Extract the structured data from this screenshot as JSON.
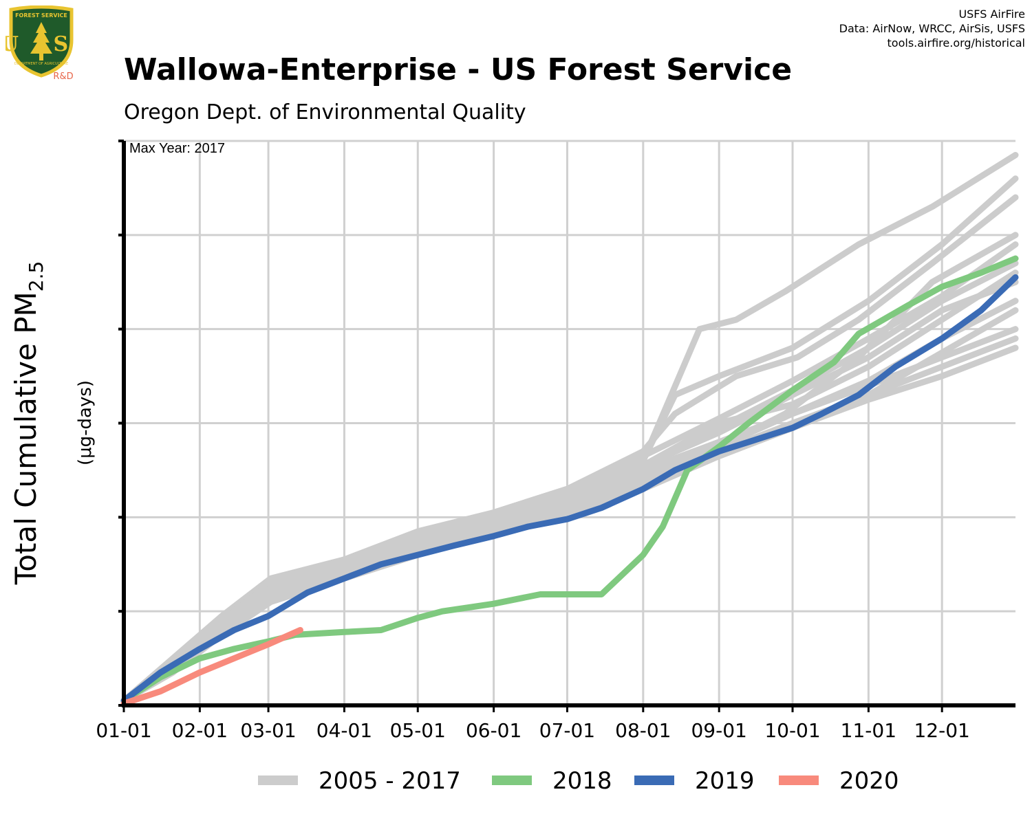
{
  "header": {
    "title": "Wallowa-Enterprise - US Forest Service",
    "subtitle": "Oregon Dept. of Environmental Quality",
    "credits": [
      "USFS AirFire",
      "Data: AirNow, WRCC, AirSis, USFS",
      "tools.airfire.org/historical"
    ]
  },
  "logo": {
    "top_text": "FOREST SERVICE",
    "letters": "U S",
    "bottom_text": "DEPARTMENT OF AGRICULTURE",
    "badge": "R&D",
    "colors": {
      "shield": "#1f5a2a",
      "border": "#e8c430",
      "badge": "#e8674a"
    }
  },
  "chart_data": {
    "type": "line",
    "annotation": "Max Year: 2017",
    "xlabel": "",
    "ylabel_main": "Total Cumulative PM",
    "ylabel_sub": "2.5",
    "ylabel_units": "(μg-days)",
    "x_ticks": [
      "01-01",
      "02-01",
      "03-01",
      "04-01",
      "05-01",
      "06-01",
      "07-01",
      "08-01",
      "09-01",
      "10-01",
      "11-01",
      "12-01"
    ],
    "x_tick_days": [
      0,
      31,
      59,
      90,
      120,
      151,
      181,
      212,
      243,
      273,
      304,
      334
    ],
    "xlim": [
      0,
      364
    ],
    "y_gridlines": 6,
    "ylim": [
      0,
      6
    ],
    "grid": true,
    "legend_position": "bottom",
    "legend": [
      {
        "label": "2005 - 2017",
        "color": "#cccccc"
      },
      {
        "label": "2018",
        "color": "#7fc97f"
      },
      {
        "label": "2019",
        "color": "#3a6bb5"
      },
      {
        "label": "2020",
        "color": "#f88a7c"
      }
    ],
    "background_series_color": "#cccccc",
    "background_series": [
      [
        [
          0,
          0.05
        ],
        [
          20,
          0.45
        ],
        [
          40,
          0.9
        ],
        [
          60,
          1.3
        ],
        [
          90,
          1.5
        ],
        [
          120,
          1.75
        ],
        [
          151,
          1.95
        ],
        [
          181,
          2.2
        ],
        [
          210,
          2.5
        ],
        [
          240,
          2.7
        ],
        [
          270,
          3.1
        ],
        [
          300,
          3.7
        ],
        [
          330,
          4.5
        ],
        [
          364,
          5.0
        ]
      ],
      [
        [
          0,
          0.05
        ],
        [
          20,
          0.5
        ],
        [
          40,
          0.95
        ],
        [
          60,
          1.35
        ],
        [
          90,
          1.55
        ],
        [
          120,
          1.8
        ],
        [
          151,
          2.05
        ],
        [
          181,
          2.3
        ],
        [
          212,
          2.6
        ],
        [
          235,
          4.0
        ],
        [
          250,
          4.1
        ],
        [
          270,
          4.4
        ],
        [
          300,
          4.9
        ],
        [
          330,
          5.3
        ],
        [
          364,
          5.85
        ]
      ],
      [
        [
          0,
          0.05
        ],
        [
          20,
          0.4
        ],
        [
          40,
          0.85
        ],
        [
          60,
          1.25
        ],
        [
          90,
          1.45
        ],
        [
          120,
          1.7
        ],
        [
          151,
          1.95
        ],
        [
          181,
          2.3
        ],
        [
          212,
          2.7
        ],
        [
          225,
          3.1
        ],
        [
          250,
          3.5
        ],
        [
          275,
          3.7
        ],
        [
          300,
          4.1
        ],
        [
          330,
          4.7
        ],
        [
          364,
          5.4
        ]
      ],
      [
        [
          0,
          0.05
        ],
        [
          20,
          0.45
        ],
        [
          40,
          0.9
        ],
        [
          60,
          1.3
        ],
        [
          90,
          1.5
        ],
        [
          120,
          1.75
        ],
        [
          151,
          1.95
        ],
        [
          181,
          2.25
        ],
        [
          212,
          2.55
        ],
        [
          243,
          3.0
        ],
        [
          273,
          3.2
        ],
        [
          304,
          3.6
        ],
        [
          334,
          4.1
        ],
        [
          364,
          4.6
        ]
      ],
      [
        [
          0,
          0.05
        ],
        [
          20,
          0.4
        ],
        [
          40,
          0.8
        ],
        [
          60,
          1.2
        ],
        [
          90,
          1.4
        ],
        [
          120,
          1.65
        ],
        [
          151,
          1.9
        ],
        [
          181,
          2.15
        ],
        [
          212,
          2.4
        ],
        [
          243,
          2.7
        ],
        [
          273,
          3.0
        ],
        [
          304,
          3.3
        ],
        [
          334,
          3.6
        ],
        [
          364,
          3.9
        ]
      ],
      [
        [
          0,
          0.05
        ],
        [
          20,
          0.45
        ],
        [
          40,
          0.9
        ],
        [
          60,
          1.3
        ],
        [
          90,
          1.55
        ],
        [
          120,
          1.85
        ],
        [
          151,
          2.05
        ],
        [
          181,
          2.3
        ],
        [
          212,
          2.65
        ],
        [
          243,
          3.05
        ],
        [
          273,
          3.45
        ],
        [
          304,
          3.9
        ],
        [
          334,
          4.35
        ],
        [
          364,
          4.9
        ]
      ],
      [
        [
          0,
          0.05
        ],
        [
          20,
          0.35
        ],
        [
          40,
          0.75
        ],
        [
          60,
          1.1
        ],
        [
          90,
          1.35
        ],
        [
          120,
          1.6
        ],
        [
          151,
          1.85
        ],
        [
          181,
          2.1
        ],
        [
          212,
          2.35
        ],
        [
          243,
          2.65
        ],
        [
          273,
          2.95
        ],
        [
          304,
          3.25
        ],
        [
          334,
          3.5
        ],
        [
          364,
          3.8
        ]
      ],
      [
        [
          0,
          0.05
        ],
        [
          20,
          0.4
        ],
        [
          40,
          0.85
        ],
        [
          60,
          1.2
        ],
        [
          90,
          1.45
        ],
        [
          120,
          1.7
        ],
        [
          151,
          1.9
        ],
        [
          181,
          2.15
        ],
        [
          212,
          2.45
        ],
        [
          243,
          2.75
        ],
        [
          273,
          3.1
        ],
        [
          304,
          3.45
        ],
        [
          334,
          3.9
        ],
        [
          364,
          4.3
        ]
      ],
      [
        [
          0,
          0.05
        ],
        [
          20,
          0.45
        ],
        [
          40,
          0.9
        ],
        [
          60,
          1.25
        ],
        [
          90,
          1.5
        ],
        [
          120,
          1.75
        ],
        [
          151,
          2.0
        ],
        [
          181,
          2.25
        ],
        [
          212,
          2.55
        ],
        [
          243,
          2.95
        ],
        [
          273,
          3.35
        ],
        [
          304,
          3.8
        ],
        [
          334,
          4.3
        ],
        [
          364,
          4.7
        ]
      ],
      [
        [
          0,
          0.05
        ],
        [
          20,
          0.4
        ],
        [
          40,
          0.8
        ],
        [
          60,
          1.15
        ],
        [
          90,
          1.4
        ],
        [
          120,
          1.65
        ],
        [
          151,
          1.85
        ],
        [
          181,
          2.05
        ],
        [
          212,
          2.3
        ],
        [
          243,
          2.65
        ],
        [
          273,
          2.95
        ],
        [
          304,
          3.3
        ],
        [
          334,
          3.75
        ],
        [
          364,
          4.2
        ]
      ],
      [
        [
          0,
          0.05
        ],
        [
          20,
          0.45
        ],
        [
          40,
          0.9
        ],
        [
          60,
          1.3
        ],
        [
          90,
          1.55
        ],
        [
          120,
          1.8
        ],
        [
          151,
          2.05
        ],
        [
          181,
          2.3
        ],
        [
          212,
          2.6
        ],
        [
          225,
          3.3
        ],
        [
          243,
          3.5
        ],
        [
          273,
          3.8
        ],
        [
          304,
          4.3
        ],
        [
          334,
          4.9
        ],
        [
          364,
          5.6
        ]
      ],
      [
        [
          0,
          0.05
        ],
        [
          20,
          0.4
        ],
        [
          40,
          0.85
        ],
        [
          60,
          1.25
        ],
        [
          90,
          1.5
        ],
        [
          120,
          1.75
        ],
        [
          151,
          2.0
        ],
        [
          181,
          2.25
        ],
        [
          212,
          2.55
        ],
        [
          243,
          2.9
        ],
        [
          273,
          3.3
        ],
        [
          304,
          3.7
        ],
        [
          334,
          4.2
        ],
        [
          364,
          4.5
        ]
      ],
      [
        [
          0,
          0.05
        ],
        [
          20,
          0.35
        ],
        [
          40,
          0.8
        ],
        [
          60,
          1.2
        ],
        [
          90,
          1.45
        ],
        [
          120,
          1.7
        ],
        [
          151,
          1.95
        ],
        [
          181,
          2.2
        ],
        [
          212,
          2.5
        ],
        [
          243,
          2.8
        ],
        [
          273,
          3.1
        ],
        [
          304,
          3.4
        ],
        [
          334,
          3.7
        ],
        [
          364,
          4.0
        ]
      ]
    ],
    "series": [
      {
        "name": "2018",
        "color": "#7fc97f",
        "points": [
          [
            0,
            0.05
          ],
          [
            15,
            0.3
          ],
          [
            31,
            0.5
          ],
          [
            45,
            0.6
          ],
          [
            59,
            0.68
          ],
          [
            70,
            0.75
          ],
          [
            90,
            0.78
          ],
          [
            105,
            0.8
          ],
          [
            120,
            0.93
          ],
          [
            130,
            1.0
          ],
          [
            151,
            1.08
          ],
          [
            170,
            1.18
          ],
          [
            181,
            1.18
          ],
          [
            195,
            1.18
          ],
          [
            212,
            1.6
          ],
          [
            220,
            1.9
          ],
          [
            230,
            2.5
          ],
          [
            243,
            2.75
          ],
          [
            255,
            3.0
          ],
          [
            273,
            3.35
          ],
          [
            290,
            3.65
          ],
          [
            300,
            3.95
          ],
          [
            320,
            4.25
          ],
          [
            334,
            4.45
          ],
          [
            350,
            4.6
          ],
          [
            364,
            4.75
          ]
        ]
      },
      {
        "name": "2019",
        "color": "#3a6bb5",
        "points": [
          [
            0,
            0.05
          ],
          [
            15,
            0.35
          ],
          [
            31,
            0.6
          ],
          [
            45,
            0.8
          ],
          [
            59,
            0.95
          ],
          [
            75,
            1.2
          ],
          [
            90,
            1.35
          ],
          [
            105,
            1.5
          ],
          [
            120,
            1.6
          ],
          [
            135,
            1.7
          ],
          [
            151,
            1.8
          ],
          [
            165,
            1.9
          ],
          [
            181,
            1.98
          ],
          [
            195,
            2.1
          ],
          [
            212,
            2.3
          ],
          [
            225,
            2.5
          ],
          [
            243,
            2.7
          ],
          [
            255,
            2.8
          ],
          [
            273,
            2.95
          ],
          [
            285,
            3.1
          ],
          [
            300,
            3.3
          ],
          [
            315,
            3.6
          ],
          [
            334,
            3.9
          ],
          [
            350,
            4.2
          ],
          [
            364,
            4.55
          ]
        ]
      },
      {
        "name": "2020",
        "color": "#f88a7c",
        "points": [
          [
            0,
            0.02
          ],
          [
            15,
            0.15
          ],
          [
            31,
            0.35
          ],
          [
            45,
            0.5
          ],
          [
            59,
            0.65
          ],
          [
            72,
            0.8
          ]
        ]
      }
    ]
  }
}
